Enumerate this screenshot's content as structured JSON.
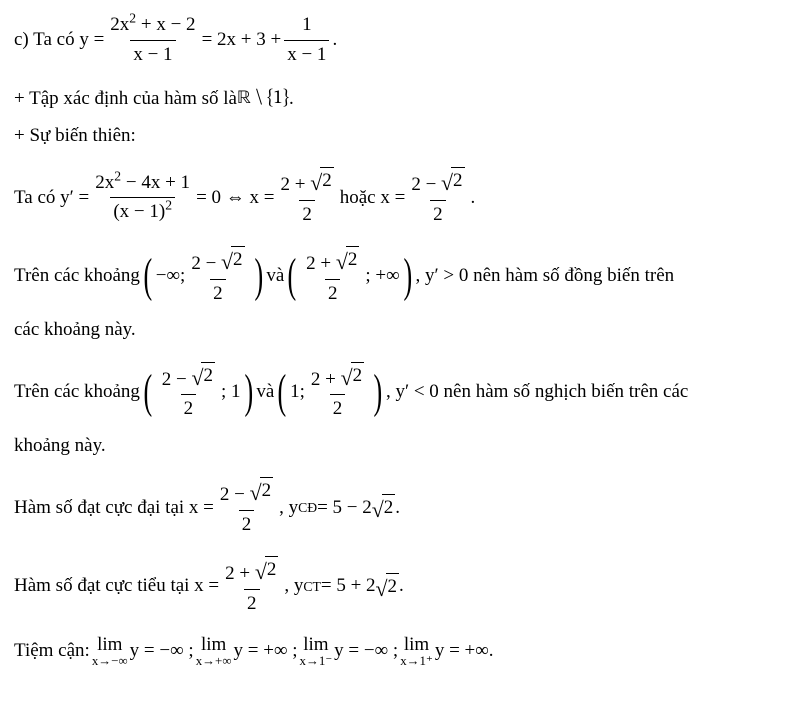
{
  "line1": {
    "prefix": "c) Ta có  y =",
    "frac1_num": "2x",
    "frac1_num_sup": "2",
    "frac1_num_rest": " + x − 2",
    "frac1_den": "x − 1",
    "mid": " = 2x + 3 + ",
    "frac2_num": "1",
    "frac2_den": "x − 1",
    "suffix": "."
  },
  "line2": {
    "prefix": "+ Tập xác định của hàm số là ",
    "set": "ℝ \\ {1}",
    "suffix": "."
  },
  "line3": {
    "text": "+ Sự biến thiên:"
  },
  "line4": {
    "prefix": "Ta có  y′ =",
    "frac_num_a": "2x",
    "frac_num_sup": "2",
    "frac_num_b": " − 4x + 1",
    "frac_den_base": "(x − 1)",
    "frac_den_sup": "2",
    "mid1": " = 0 ⇔ x = ",
    "fracA_num_a": "2 + ",
    "fracA_rad": "2",
    "fracA_den": "2",
    "mid2": "  hoặc  x = ",
    "fracB_num_a": "2 − ",
    "fracB_rad": "2",
    "fracB_den": "2",
    "suffix": " ."
  },
  "line5": {
    "prefix": "Trên các khoảng ",
    "int1_left": "−∞; ",
    "int1_frac_num_a": "2 − ",
    "int1_rad": "2",
    "int1_frac_den": "2",
    "mid": "  và  ",
    "int2_frac_num_a": "2 + ",
    "int2_rad": "2",
    "int2_frac_den": "2",
    "int2_right": "; +∞",
    "after": ", y′ > 0 nên hàm số đồng biến trên"
  },
  "line5b": {
    "text": "các khoảng này."
  },
  "line6": {
    "prefix": "Trên các khoảng ",
    "intA_frac_num_a": "2 − ",
    "intA_rad": "2",
    "intA_frac_den": "2",
    "intA_right": "; 1",
    "mid": "  và  ",
    "intB_left": "1; ",
    "intB_frac_num_a": "2 + ",
    "intB_rad": "2",
    "intB_frac_den": "2",
    "after": ", y′ < 0 nên hàm số nghịch biến trên các"
  },
  "line6b": {
    "text": "khoảng này."
  },
  "line7": {
    "prefix": "Hàm số đạt cực đại tại  x = ",
    "frac_num_a": "2 − ",
    "rad": "2",
    "frac_den": "2",
    "mid": " ,  y",
    "sub": "CĐ",
    "eq": " = 5 − 2",
    "rad2": "2",
    "suffix": "."
  },
  "line8": {
    "prefix": "Hàm số đạt cực tiểu tại  x = ",
    "frac_num_a": "2 + ",
    "rad": "2",
    "frac_den": "2",
    "mid": " ,  y",
    "sub": "CT",
    "eq": " = 5 + 2",
    "rad2": "2",
    "suffix": "."
  },
  "line9": {
    "prefix": "Tiệm cận: ",
    "lim": "lim",
    "l1_bot": "x→−∞",
    "l1_val": " y = −∞ ; ",
    "l2_bot": "x→+∞",
    "l2_val": " y = +∞ ; ",
    "l3_bot": "x→1⁻",
    "l3_val": " y = −∞ ;  ",
    "l4_bot": "x→1⁺",
    "l4_val": " y = +∞."
  }
}
